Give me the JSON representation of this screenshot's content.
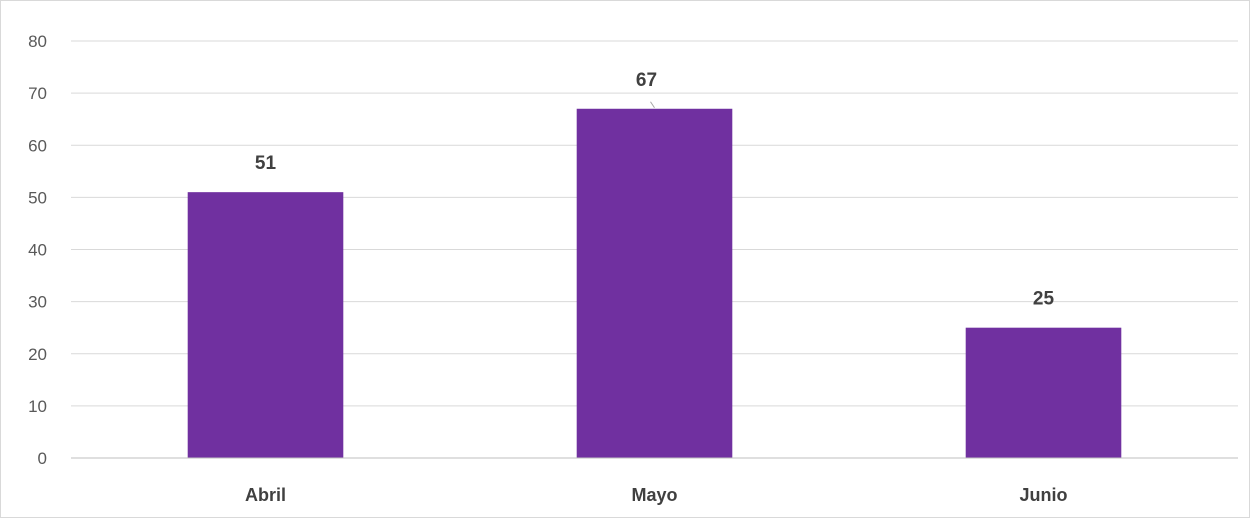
{
  "chart_data": {
    "type": "bar",
    "title": "",
    "xlabel": "",
    "ylabel": "",
    "categories": [
      "Abril",
      "Mayo",
      "Junio"
    ],
    "values": [
      51,
      67,
      25
    ],
    "data_labels": [
      "51",
      "67",
      "25"
    ],
    "ylim": [
      0,
      80
    ],
    "yticks": [
      0,
      10,
      20,
      30,
      40,
      50,
      60,
      70,
      80
    ],
    "grid": true,
    "legend": "none",
    "bar_color": "#7030A0"
  }
}
